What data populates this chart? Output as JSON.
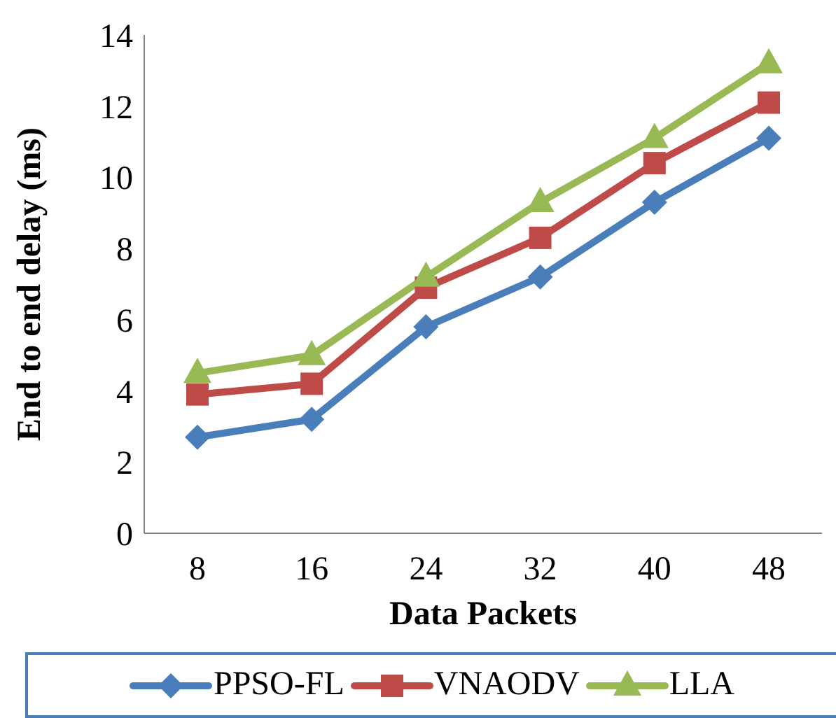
{
  "chart_data": {
    "type": "line",
    "xlabel": "Data Packets",
    "ylabel": "End to end delay (ms)",
    "categories": [
      "8",
      "16",
      "24",
      "32",
      "40",
      "48"
    ],
    "ylim": [
      0,
      14
    ],
    "yticks": [
      0,
      2,
      4,
      6,
      8,
      10,
      12,
      14
    ],
    "grid": false,
    "legend": "bottom",
    "line_style": "solid",
    "series": [
      {
        "name": "PPSO-FL",
        "color": "#4a7ebb",
        "marker": "diamond",
        "values": [
          2.7,
          3.2,
          5.8,
          7.2,
          9.3,
          11.1
        ]
      },
      {
        "name": "VNAODV",
        "color": "#be4b48",
        "marker": "square",
        "values": [
          3.9,
          4.2,
          6.9,
          8.3,
          10.4,
          12.1
        ]
      },
      {
        "name": "LLA",
        "color": "#98b954",
        "marker": "triangle",
        "values": [
          4.5,
          5.0,
          7.2,
          9.3,
          11.1,
          13.2
        ]
      }
    ]
  }
}
